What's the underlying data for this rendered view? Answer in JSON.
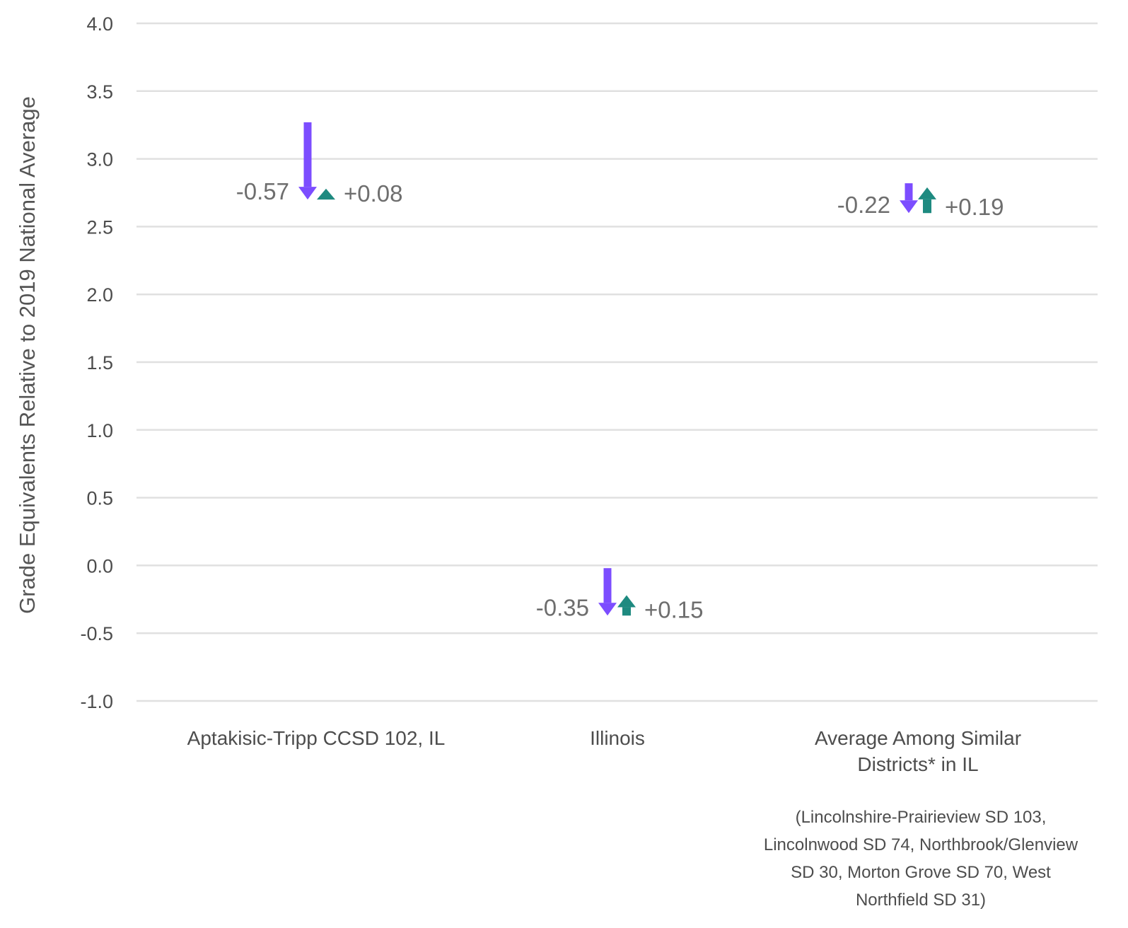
{
  "chart_data": {
    "type": "arrow-change",
    "ylabel": "Grade Equivalents Relative to 2019 National Average",
    "ylim": [
      -1.0,
      4.0
    ],
    "yticks": [
      "4.0",
      "3.5",
      "3.0",
      "2.5",
      "2.0",
      "1.5",
      "1.0",
      "0.5",
      "0.0",
      "-0.5",
      "-1.0"
    ],
    "grid": true,
    "colors": {
      "decline": "#7c4dff",
      "recovery": "#1e8a80"
    },
    "categories": [
      {
        "label": [
          "Aptakisic-Tripp CCSD 102, IL"
        ],
        "start": 3.27,
        "decline": -0.57,
        "recovery": 0.08,
        "decline_label": "-0.57",
        "recovery_label": "+0.08"
      },
      {
        "label": [
          "Illinois"
        ],
        "start": -0.02,
        "decline": -0.35,
        "recovery": 0.15,
        "decline_label": "-0.35",
        "recovery_label": "+0.15"
      },
      {
        "label": [
          "Average Among Similar",
          "Districts* in IL"
        ],
        "note": [
          "(Lincolnshire-Prairieview SD 103,",
          "Lincolnwood SD 74, Northbrook/Glenview",
          "SD 30, Morton Grove SD 70, West",
          "Northfield SD 31)"
        ],
        "start": 2.82,
        "decline": -0.22,
        "recovery": 0.19,
        "decline_label": "-0.22",
        "recovery_label": "+0.19"
      }
    ]
  }
}
